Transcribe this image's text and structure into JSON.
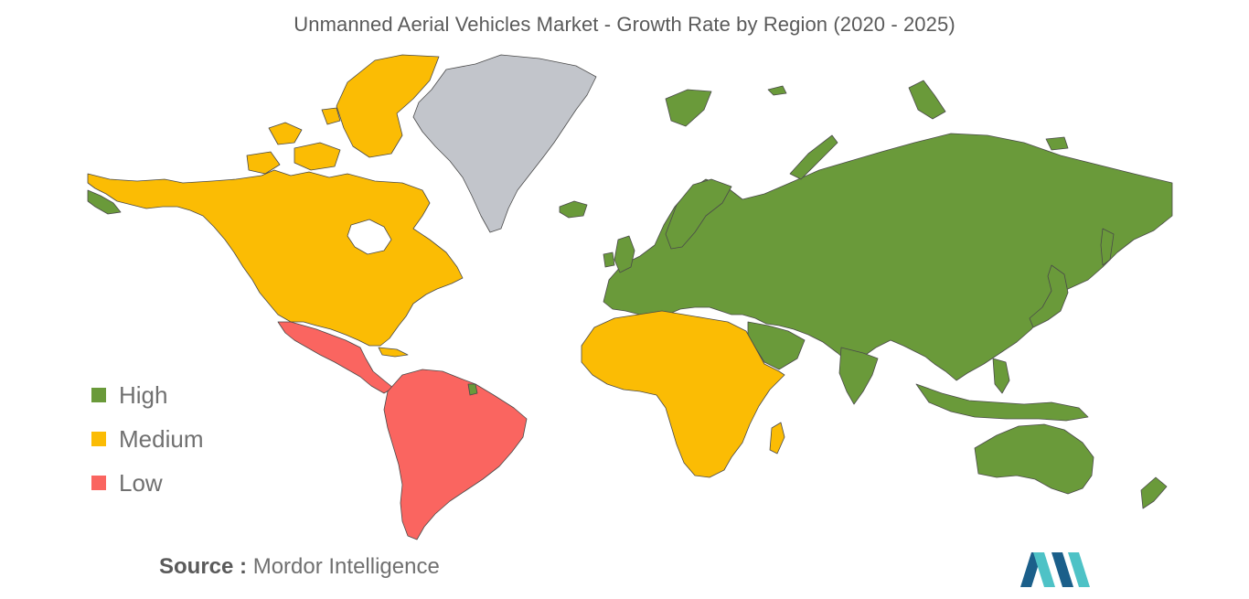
{
  "title": "Unmanned Aerial Vehicles Market - Growth Rate by Region (2020 - 2025)",
  "legend": [
    {
      "label": "High",
      "color": "#6a9a3a"
    },
    {
      "label": "Medium",
      "color": "#fbbc04"
    },
    {
      "label": "Low",
      "color": "#fa6560"
    }
  ],
  "no_data_color": "#c2c5cb",
  "source": {
    "label": "Source :",
    "value": "Mordor Intelligence"
  },
  "logo": {
    "name": "mordor-intelligence-logo",
    "colors": [
      "#1b5f8a",
      "#4ec2c6"
    ]
  }
}
